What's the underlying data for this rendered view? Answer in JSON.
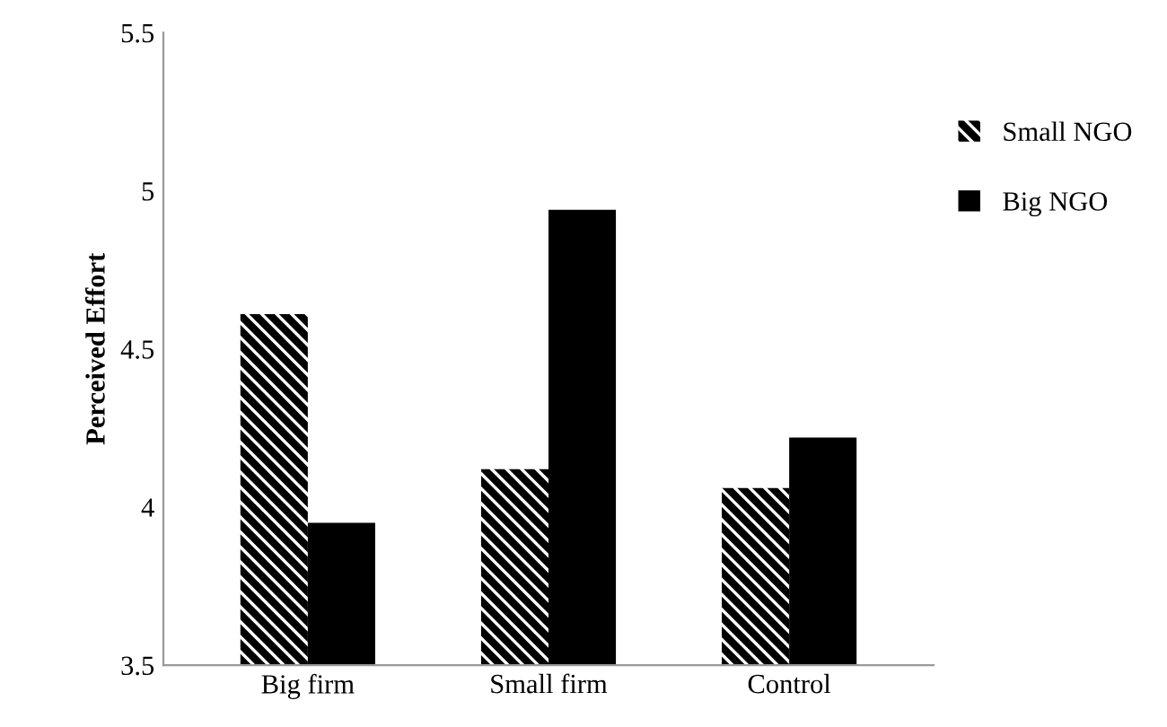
{
  "chart_data": {
    "type": "bar",
    "ylabel": "Perceived Effort",
    "categories": [
      "Big firm",
      "Small firm",
      "Control"
    ],
    "series": [
      {
        "name": "Small NGO",
        "color": "#ffffff",
        "values": [
          4.61,
          4.12,
          4.06
        ]
      },
      {
        "name": "Big NGO",
        "color": "#000000",
        "values": [
          3.95,
          4.94,
          4.22
        ]
      }
    ],
    "ylim": [
      3.5,
      5.5
    ],
    "yticks": [
      3.5,
      4,
      4.5,
      5,
      5.5
    ],
    "grid": false,
    "legend": "top right"
  }
}
